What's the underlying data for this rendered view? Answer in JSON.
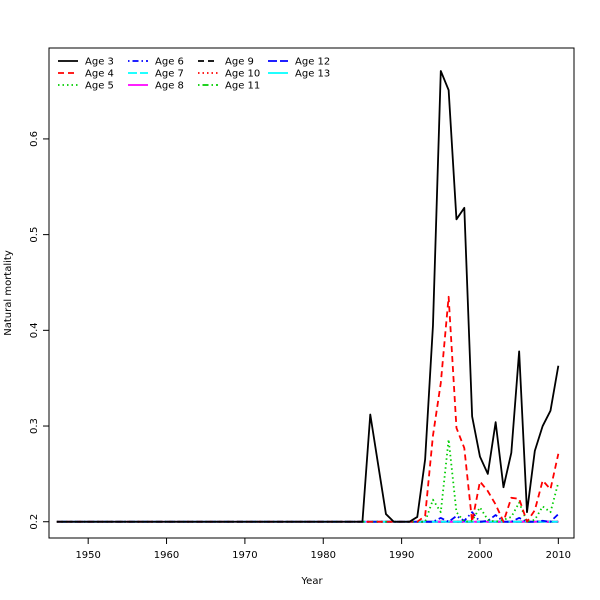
{
  "chart_data": {
    "type": "line",
    "title": "",
    "xlabel": "Year",
    "ylabel": "Natural mortality",
    "xlim": [
      1945,
      2012
    ],
    "ylim": [
      0.183,
      0.695
    ],
    "xticks": [
      1950,
      1960,
      1970,
      1980,
      1990,
      2000,
      2010
    ],
    "yticks": [
      0.2,
      0.3,
      0.4,
      0.5,
      0.6
    ],
    "ytick_labels": [
      "0.2",
      "0.3",
      "0.4",
      "0.5",
      "0.6"
    ],
    "grid": false,
    "legend_position": "top-left",
    "series": [
      {
        "name": "Age 3",
        "color": "#000000",
        "dash": "solid",
        "points": [
          [
            1946,
            0.2
          ],
          [
            1984,
            0.2
          ],
          [
            1985,
            0.2
          ],
          [
            1986,
            0.312
          ],
          [
            1987,
            0.26
          ],
          [
            1988,
            0.208
          ],
          [
            1989,
            0.2
          ],
          [
            1990,
            0.2
          ],
          [
            1991,
            0.2
          ],
          [
            1992,
            0.205
          ],
          [
            1993,
            0.265
          ],
          [
            1994,
            0.405
          ],
          [
            1995,
            0.671
          ],
          [
            1996,
            0.651
          ],
          [
            1997,
            0.516
          ],
          [
            1998,
            0.528
          ],
          [
            1999,
            0.31
          ],
          [
            2000,
            0.268
          ],
          [
            2001,
            0.25
          ],
          [
            2002,
            0.304
          ],
          [
            2003,
            0.236
          ],
          [
            2004,
            0.272
          ],
          [
            2005,
            0.378
          ],
          [
            2006,
            0.21
          ],
          [
            2007,
            0.274
          ],
          [
            2008,
            0.3
          ],
          [
            2009,
            0.316
          ],
          [
            2010,
            0.363
          ]
        ]
      },
      {
        "name": "Age 4",
        "color": "#ff0000",
        "dash": "dashed",
        "points": [
          [
            1946,
            0.2
          ],
          [
            1992,
            0.2
          ],
          [
            1993,
            0.206
          ],
          [
            1994,
            0.29
          ],
          [
            1995,
            0.345
          ],
          [
            1996,
            0.435
          ],
          [
            1997,
            0.298
          ],
          [
            1998,
            0.277
          ],
          [
            1999,
            0.2
          ],
          [
            2000,
            0.242
          ],
          [
            2001,
            0.232
          ],
          [
            2002,
            0.218
          ],
          [
            2003,
            0.2
          ],
          [
            2004,
            0.225
          ],
          [
            2005,
            0.224
          ],
          [
            2006,
            0.2
          ],
          [
            2007,
            0.212
          ],
          [
            2008,
            0.243
          ],
          [
            2009,
            0.234
          ],
          [
            2010,
            0.271
          ]
        ]
      },
      {
        "name": "Age 5",
        "color": "#00cd00",
        "dash": "dotted",
        "points": [
          [
            1946,
            0.2
          ],
          [
            1993,
            0.2
          ],
          [
            1994,
            0.223
          ],
          [
            1995,
            0.21
          ],
          [
            1996,
            0.286
          ],
          [
            1997,
            0.21
          ],
          [
            1998,
            0.2
          ],
          [
            1999,
            0.201
          ],
          [
            2000,
            0.215
          ],
          [
            2001,
            0.202
          ],
          [
            2002,
            0.2
          ],
          [
            2003,
            0.202
          ],
          [
            2004,
            0.205
          ],
          [
            2005,
            0.22
          ],
          [
            2006,
            0.2
          ],
          [
            2007,
            0.202
          ],
          [
            2008,
            0.216
          ],
          [
            2009,
            0.21
          ],
          [
            2010,
            0.241
          ]
        ]
      },
      {
        "name": "Age 6",
        "color": "#0000ff",
        "dash": "dotdash",
        "points": [
          [
            1946,
            0.2
          ],
          [
            1994,
            0.2
          ],
          [
            1995,
            0.204
          ],
          [
            1996,
            0.2
          ],
          [
            1997,
            0.206
          ],
          [
            1998,
            0.201
          ],
          [
            1999,
            0.21
          ],
          [
            2000,
            0.2
          ],
          [
            2001,
            0.201
          ],
          [
            2002,
            0.207
          ],
          [
            2003,
            0.2
          ],
          [
            2004,
            0.2
          ],
          [
            2005,
            0.204
          ],
          [
            2006,
            0.2
          ],
          [
            2007,
            0.2
          ],
          [
            2008,
            0.201
          ],
          [
            2009,
            0.2
          ],
          [
            2010,
            0.208
          ]
        ]
      },
      {
        "name": "Age 7",
        "color": "#00ffff",
        "dash": "longdash",
        "points": [
          [
            1946,
            0.2
          ],
          [
            2010,
            0.2
          ]
        ]
      },
      {
        "name": "Age 8",
        "color": "#ff00ff",
        "dash": "solid",
        "points": [
          [
            1946,
            0.2
          ],
          [
            2010,
            0.2
          ]
        ]
      },
      {
        "name": "Age 9",
        "color": "#000000",
        "dash": "dashed",
        "points": [
          [
            1946,
            0.2
          ],
          [
            2010,
            0.2
          ]
        ]
      },
      {
        "name": "Age 10",
        "color": "#ff0000",
        "dash": "dotted",
        "points": [
          [
            1946,
            0.2
          ],
          [
            2010,
            0.2
          ]
        ]
      },
      {
        "name": "Age 11",
        "color": "#00cd00",
        "dash": "dotdash",
        "points": [
          [
            1946,
            0.2
          ],
          [
            2010,
            0.2
          ]
        ]
      },
      {
        "name": "Age 12",
        "color": "#0000ff",
        "dash": "longdash",
        "points": [
          [
            1946,
            0.2
          ],
          [
            2010,
            0.2
          ]
        ]
      },
      {
        "name": "Age 13",
        "color": "#00ffff",
        "dash": "solid",
        "points": [
          [
            1946,
            0.2
          ],
          [
            2010,
            0.2
          ]
        ]
      }
    ]
  }
}
